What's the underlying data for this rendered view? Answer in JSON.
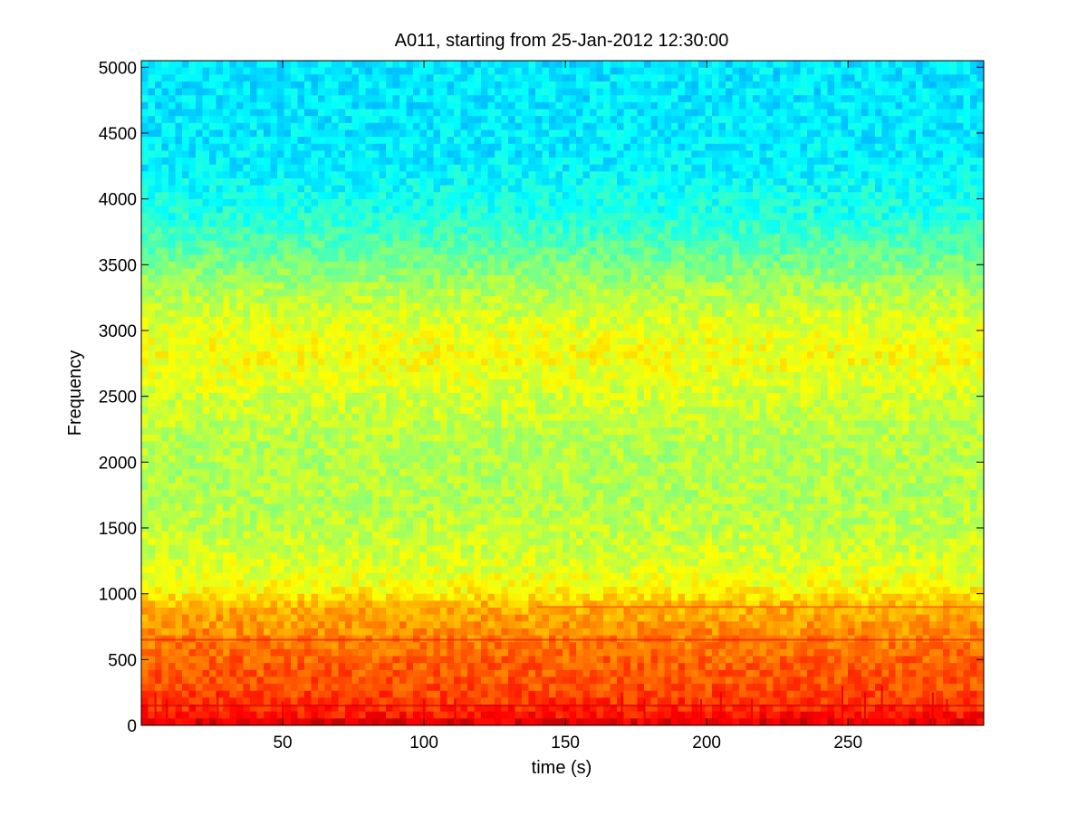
{
  "chart_data": {
    "type": "heatmap",
    "title": "A011, starting from 25-Jan-2012 12:30:00",
    "xlabel": "time (s)",
    "ylabel": "Frequency",
    "xlim": [
      0,
      298
    ],
    "ylim": [
      0,
      5050
    ],
    "x_ticks": [
      50,
      100,
      150,
      200,
      250
    ],
    "y_ticks": [
      0,
      500,
      1000,
      1500,
      2000,
      2500,
      3000,
      3500,
      4000,
      4500,
      5000
    ],
    "grid": false,
    "colormap": "jet",
    "colors": {
      "cold": "#37e8c0",
      "mid": "#c8f22c",
      "warm": "#fff200",
      "hot": "#ff8a00",
      "hottest": "#ee0000"
    },
    "frequency_profile": [
      {
        "y": 0,
        "level": 0.92
      },
      {
        "y": 100,
        "level": 0.84
      },
      {
        "y": 300,
        "level": 0.8
      },
      {
        "y": 500,
        "level": 0.78
      },
      {
        "y": 700,
        "level": 0.74
      },
      {
        "y": 900,
        "level": 0.7
      },
      {
        "y": 1050,
        "level": 0.62
      },
      {
        "y": 1300,
        "level": 0.58
      },
      {
        "y": 1700,
        "level": 0.55
      },
      {
        "y": 2100,
        "level": 0.55
      },
      {
        "y": 2500,
        "level": 0.58
      },
      {
        "y": 2800,
        "level": 0.62
      },
      {
        "y": 3000,
        "level": 0.6
      },
      {
        "y": 3300,
        "level": 0.55
      },
      {
        "y": 3600,
        "level": 0.47
      },
      {
        "y": 3900,
        "level": 0.4
      },
      {
        "y": 4300,
        "level": 0.36
      },
      {
        "y": 5050,
        "level": 0.35
      }
    ],
    "tonal_lines": [
      {
        "y": 650,
        "t0": 0,
        "t1": 298,
        "level": 0.86
      },
      {
        "y": 150,
        "t0": 0,
        "t1": 298,
        "level": 0.92
      },
      {
        "y": 900,
        "t0": 140,
        "t1": 298,
        "level": 0.8
      }
    ],
    "transients": [
      {
        "t": 5,
        "fmax": 250
      },
      {
        "t": 9,
        "fmax": 200
      },
      {
        "t": 27,
        "fmax": 250
      },
      {
        "t": 50,
        "fmax": 180
      },
      {
        "t": 100,
        "fmax": 200
      },
      {
        "t": 111,
        "fmax": 200
      },
      {
        "t": 170,
        "fmax": 250
      },
      {
        "t": 178,
        "fmax": 200
      },
      {
        "t": 198,
        "fmax": 200
      },
      {
        "t": 205,
        "fmax": 250
      },
      {
        "t": 216,
        "fmax": 200
      },
      {
        "t": 248,
        "fmax": 300
      },
      {
        "t": 256,
        "fmax": 250
      },
      {
        "t": 262,
        "fmax": 300
      },
      {
        "t": 280,
        "fmax": 250
      },
      {
        "t": 285,
        "fmax": 200
      }
    ]
  }
}
